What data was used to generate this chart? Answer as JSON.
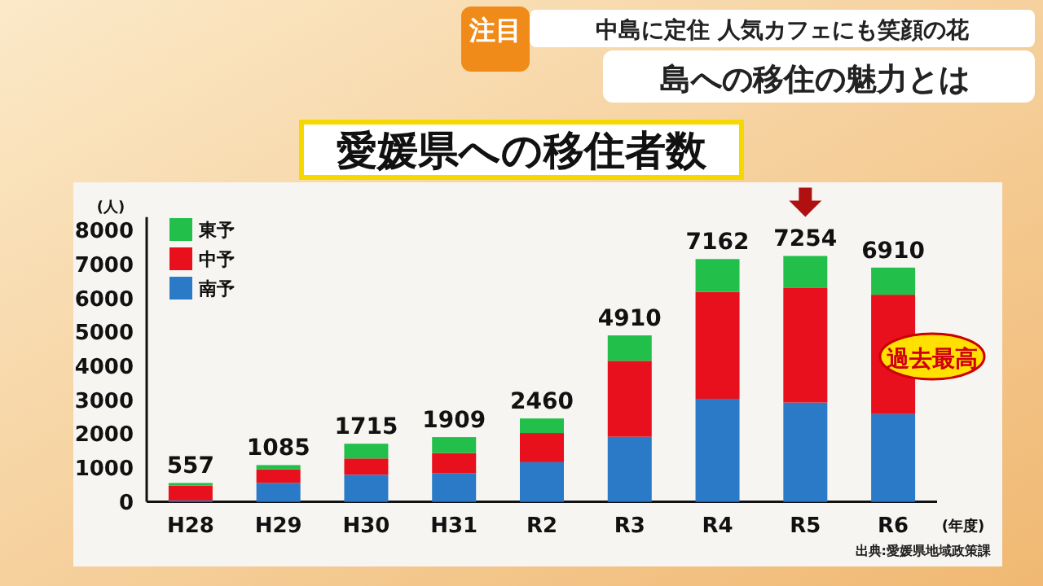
{
  "chart_data": {
    "type": "bar",
    "stacked": true,
    "title": "愛媛県への移住者数",
    "ylabel": "(人)",
    "xlabel": "(年度)",
    "annotations": [
      "注目",
      "中島に定住 人気カフェにも笑顔の花",
      "島への移住の魅力とは",
      "過去最高",
      "出典:愛媛県地域政策課"
    ],
    "categories": [
      "H28",
      "H29",
      "H30",
      "H31",
      "R2",
      "R3",
      "R4",
      "R5",
      "R6"
    ],
    "series": [
      {
        "name": "南予",
        "color": "#2a7ac8",
        "values": [
          40,
          560,
          800,
          850,
          1170,
          1920,
          3040,
          2930,
          2590
        ]
      },
      {
        "name": "中予",
        "color": "#e8101c",
        "values": [
          440,
          400,
          480,
          590,
          860,
          2240,
          3150,
          3390,
          3520
        ]
      },
      {
        "name": "東予",
        "color": "#22c04a",
        "values": [
          77,
          125,
          435,
          469,
          430,
          750,
          972,
          934,
          800
        ]
      }
    ],
    "totals": [
      "557",
      "1085",
      "1715",
      "1909",
      "2460",
      "4910",
      "7162",
      "7254",
      "6910"
    ],
    "ylim": [
      0,
      8400
    ],
    "yticks": [
      0,
      1000,
      2000,
      3000,
      4000,
      5000,
      6000,
      7000,
      8000
    ],
    "legend": "top left"
  }
}
